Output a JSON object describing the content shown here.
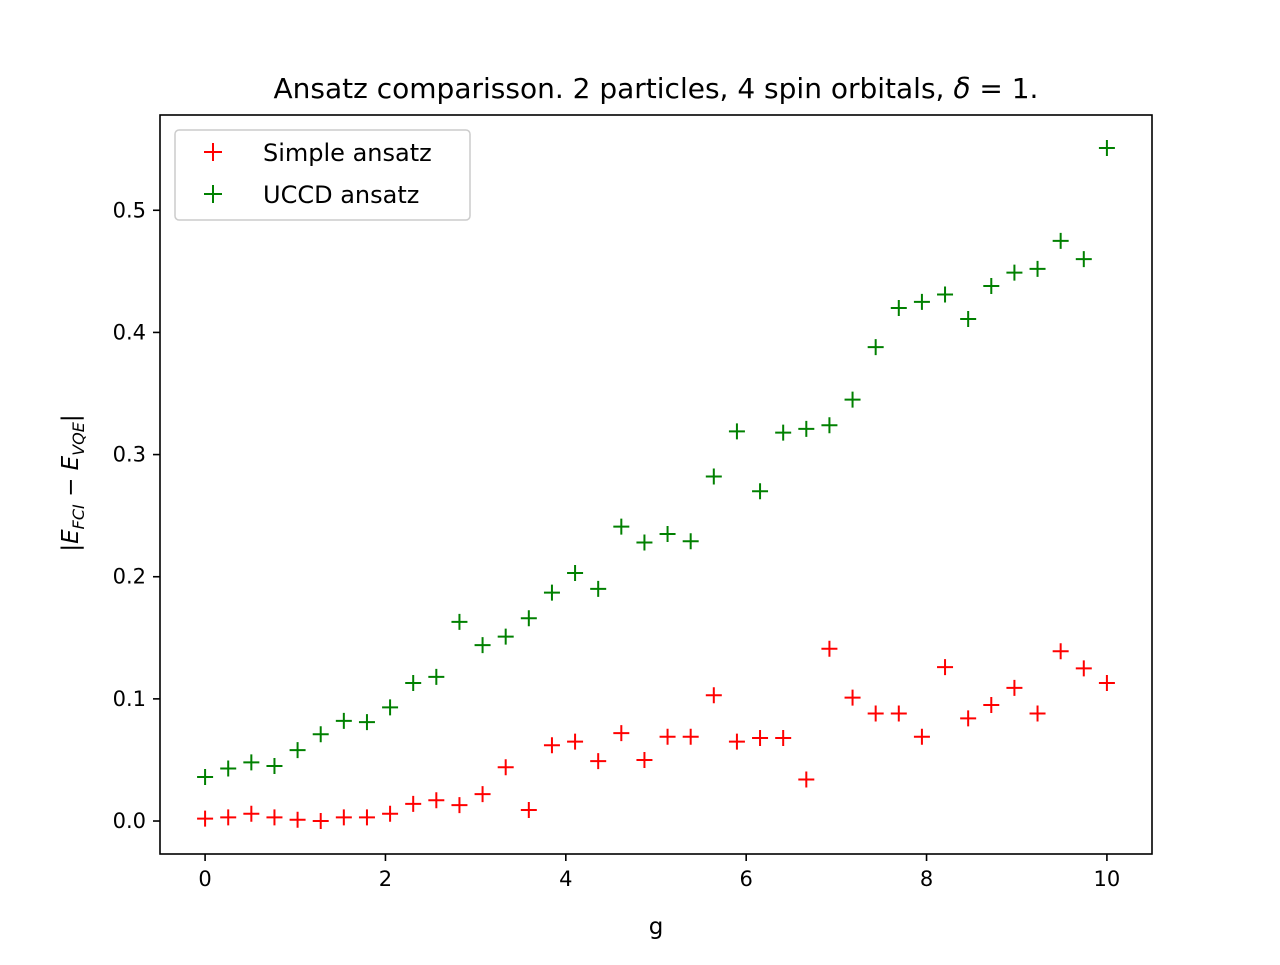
{
  "chart_data": {
    "type": "scatter",
    "title_parts": {
      "main": "Ansatz comparisson. 2 particles, 4 spin orbitals, ",
      "delta": "δ",
      "eq": " = 1."
    },
    "xlabel": "g",
    "ylabel_parts": {
      "open": "|",
      "e1": "E",
      "s1": "FCI",
      "minus": " − ",
      "e2": "E",
      "s2": "VQE",
      "close": "|"
    },
    "xlim": [
      -0.5,
      10.5
    ],
    "ylim": [
      -0.027,
      0.578
    ],
    "x_ticks": [
      0,
      2,
      4,
      6,
      8,
      10
    ],
    "x_tick_labels": [
      "0",
      "2",
      "4",
      "6",
      "8",
      "10"
    ],
    "y_ticks": [
      0.0,
      0.1,
      0.2,
      0.3,
      0.4,
      0.5
    ],
    "y_tick_labels": [
      "0.0",
      "0.1",
      "0.2",
      "0.3",
      "0.4",
      "0.5"
    ],
    "grid": false,
    "legend_position": "upper left",
    "marker": "+",
    "x": [
      0.0,
      0.2564,
      0.5128,
      0.7692,
      1.0256,
      1.2821,
      1.5385,
      1.7949,
      2.0513,
      2.3077,
      2.5641,
      2.8205,
      3.0769,
      3.3333,
      3.5897,
      3.8462,
      4.1026,
      4.359,
      4.6154,
      4.8718,
      5.1282,
      5.3846,
      5.641,
      5.8974,
      6.1538,
      6.4103,
      6.6667,
      6.9231,
      7.1795,
      7.4359,
      7.6923,
      7.9487,
      8.2051,
      8.4615,
      8.7179,
      8.9744,
      9.2308,
      9.4872,
      9.7436,
      10.0
    ],
    "series": [
      {
        "name": "Simple ansatz",
        "color": "#ff0000",
        "values": [
          0.002,
          0.003,
          0.006,
          0.003,
          0.001,
          0.0,
          0.003,
          0.003,
          0.006,
          0.014,
          0.017,
          0.013,
          0.022,
          0.044,
          0.009,
          0.062,
          0.065,
          0.049,
          0.072,
          0.05,
          0.069,
          0.069,
          0.103,
          0.065,
          0.068,
          0.068,
          0.034,
          0.141,
          0.101,
          0.088,
          0.088,
          0.069,
          0.126,
          0.084,
          0.095,
          0.109,
          0.088,
          0.139,
          0.125,
          0.113
        ]
      },
      {
        "name": "UCCD ansatz",
        "color": "#008000",
        "values": [
          0.036,
          0.043,
          0.048,
          0.045,
          0.058,
          0.071,
          0.082,
          0.081,
          0.093,
          0.113,
          0.118,
          0.163,
          0.144,
          0.151,
          0.166,
          0.187,
          0.203,
          0.19,
          0.241,
          0.228,
          0.235,
          0.229,
          0.282,
          0.319,
          0.27,
          0.318,
          0.321,
          0.324,
          0.345,
          0.388,
          0.42,
          0.425,
          0.431,
          0.411,
          0.438,
          0.449,
          0.452,
          0.475,
          0.46,
          0.551
        ]
      }
    ]
  }
}
